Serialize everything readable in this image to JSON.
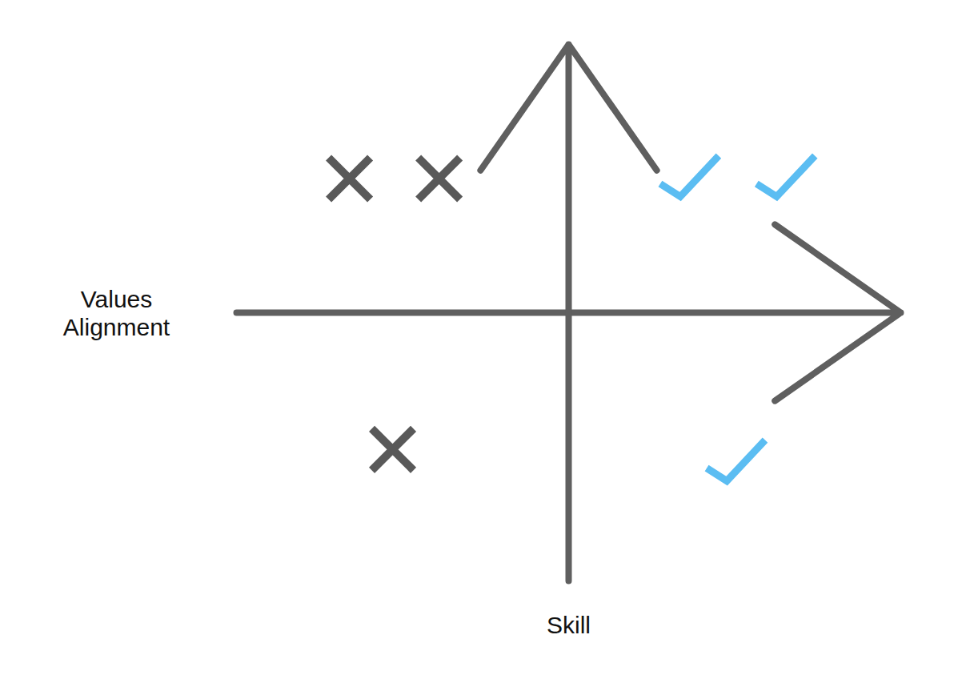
{
  "chart_data": {
    "type": "scatter",
    "xlabel": "Values Alignment",
    "ylabel": "Skill",
    "xlim": [
      -10,
      10
    ],
    "ylim": [
      -10,
      10
    ],
    "xticks": [],
    "yticks": [],
    "tick_labels": false,
    "grid": false,
    "series": [
      {
        "color": "#595959",
        "marker": "x",
        "x": [
          -6.6,
          -3.9,
          -5.3
        ],
        "values": [
          5.0,
          5.0,
          -5.1
        ]
      },
      {
        "color": "#5bbdf2",
        "marker": "check",
        "x": [
          3.6,
          6.5,
          5.0
        ],
        "values": [
          5.1,
          5.1,
          -5.5
        ]
      }
    ]
  }
}
